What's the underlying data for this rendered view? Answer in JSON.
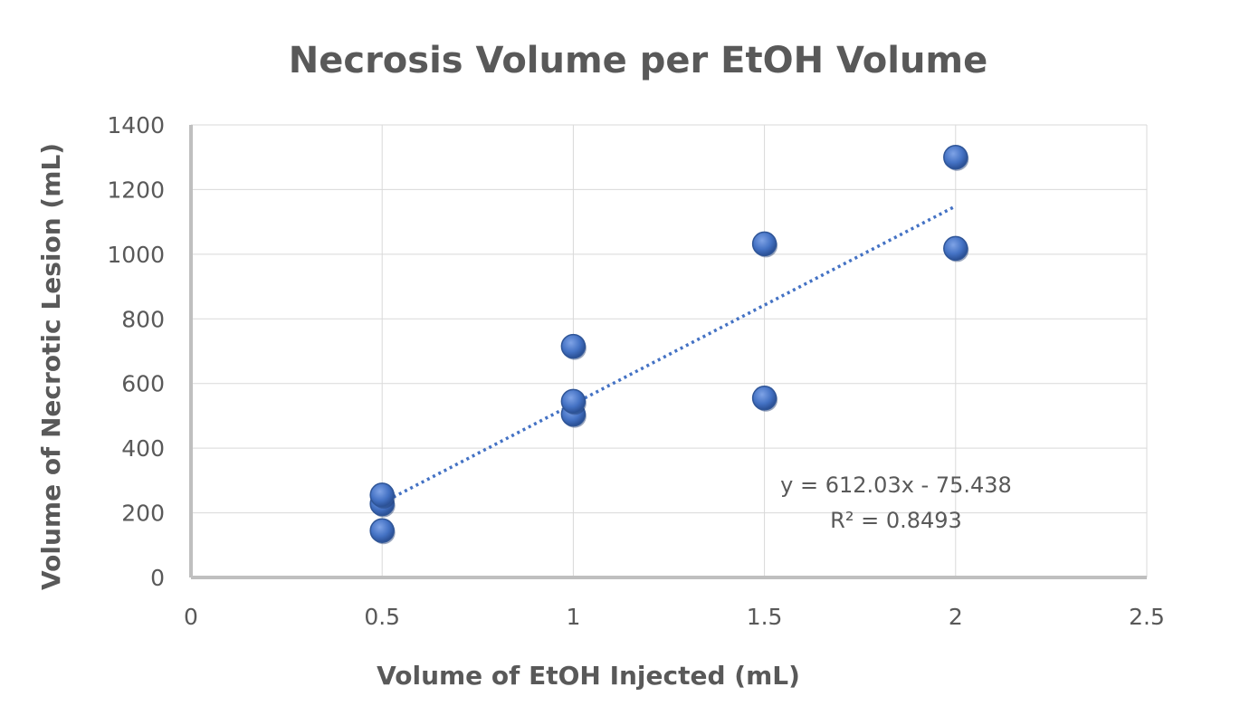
{
  "chart_data": {
    "type": "scatter",
    "title": "Necrosis Volume per EtOH Volume",
    "xlabel": "Volume of EtOH Injected (mL)",
    "ylabel": "Volume of Necrotic Lesion  (mL)",
    "xlim": [
      0,
      2.5
    ],
    "ylim": [
      0,
      1400
    ],
    "x_ticks": [
      0,
      0.5,
      1,
      1.5,
      2,
      2.5
    ],
    "y_ticks": [
      0,
      200,
      400,
      600,
      800,
      1000,
      1200,
      1400
    ],
    "grid": true,
    "legend": "none",
    "marker_color": "#4472C4",
    "points": [
      {
        "x": 0.5,
        "y": 145
      },
      {
        "x": 0.5,
        "y": 228
      },
      {
        "x": 0.5,
        "y": 255
      },
      {
        "x": 1.0,
        "y": 505
      },
      {
        "x": 1.0,
        "y": 545
      },
      {
        "x": 1.0,
        "y": 715
      },
      {
        "x": 1.5,
        "y": 555
      },
      {
        "x": 1.5,
        "y": 1032
      },
      {
        "x": 2.0,
        "y": 1018
      },
      {
        "x": 2.0,
        "y": 1300
      }
    ],
    "trendline": {
      "type": "linear",
      "slope": 612.03,
      "intercept": -75.438,
      "x_range": [
        0.5,
        2.0
      ],
      "color": "#4472C4",
      "style": "dotted",
      "equation_label": "y = 612.03x - 75.438",
      "r2_label": "R² = 0.8493"
    }
  }
}
